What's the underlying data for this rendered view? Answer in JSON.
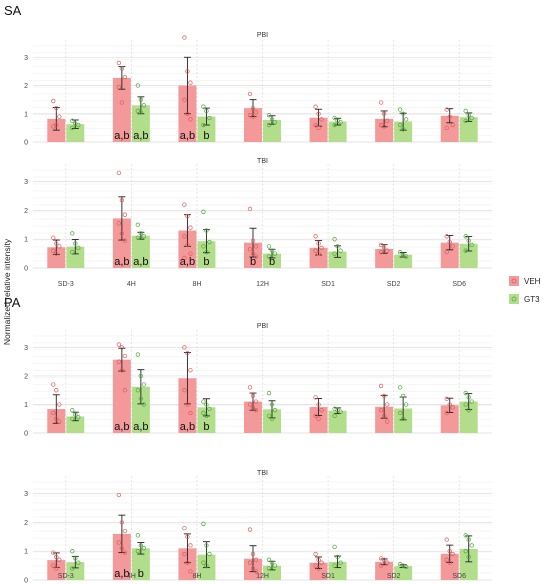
{
  "chart_data": {
    "type": "bar",
    "ylabel": "Normalized relative intensity",
    "categories": [
      "SD-3",
      "4H",
      "8H",
      "12H",
      "SD1",
      "SD2",
      "SD6"
    ],
    "yticks": [
      0,
      1,
      2,
      3
    ],
    "ylim": [
      0,
      3.4
    ],
    "grid": true,
    "legend": {
      "position": "right",
      "entries": [
        "VEH",
        "GT3"
      ]
    },
    "colors": {
      "VEH": "#f4999a",
      "GT3": "#b2de8b",
      "VEH_point": "#e05a5a",
      "GT3_point": "#4caa3c"
    },
    "sections": [
      {
        "label": "SA",
        "panels": [
          {
            "title": "PBI",
            "series": [
              {
                "name": "VEH",
                "values": [
                  0.82,
                  2.27,
                  2.0,
                  1.2,
                  0.86,
                  0.82,
                  0.93
                ],
                "err": [
                  0.4,
                  0.4,
                  1.0,
                  0.3,
                  0.3,
                  0.28,
                  0.25
                ]
              },
              {
                "name": "GT3",
                "values": [
                  0.63,
                  1.3,
                  0.9,
                  0.78,
                  0.72,
                  0.72,
                  0.88
                ],
                "err": [
                  0.15,
                  0.3,
                  0.3,
                  0.15,
                  0.12,
                  0.3,
                  0.15
                ]
              }
            ],
            "points": {
              "VEH": [
                [
                  1.45,
                  1.2,
                  0.9,
                  0.55,
                  0.6
                ],
                [
                  2.8,
                  2.6,
                  2.3,
                  1.95,
                  1.4
                ],
                [
                  3.7,
                  2.5,
                  2.1,
                  1.5,
                  1.0,
                  0.8
                ],
                [
                  1.7,
                  1.2,
                  1.05,
                  0.95,
                  0.9
                ],
                [
                  1.25,
                  1.0,
                  0.8,
                  0.6,
                  0.5
                ],
                [
                  1.4,
                  1.0,
                  0.75,
                  0.6,
                  0.55
                ],
                [
                  1.15,
                  0.9,
                  0.6,
                  0.5
                ]
              ],
              "GT3": [
                [
                  0.75,
                  0.65,
                  0.6,
                  0.5
                ],
                [
                  2.0,
                  1.5,
                  1.3,
                  1.1,
                  1.05
                ],
                [
                  1.25,
                  1.1,
                  0.85,
                  0.6
                ],
                [
                  0.95,
                  0.8,
                  0.7,
                  0.6
                ],
                [
                  0.85,
                  0.75,
                  0.7,
                  0.6
                ],
                [
                  1.15,
                  1.0,
                  0.8,
                  0.6,
                  0.45
                ],
                [
                  1.1,
                  0.95,
                  0.85,
                  0.75
                ]
              ]
            },
            "annotations": [
              {
                "category": "4H",
                "series": "VEH",
                "text": "a,b"
              },
              {
                "category": "4H",
                "series": "GT3",
                "text": "a,b"
              },
              {
                "category": "8H",
                "series": "VEH",
                "text": "a,b"
              },
              {
                "category": "8H",
                "series": "GT3",
                "text": "b"
              }
            ]
          },
          {
            "title": "TBI",
            "series": [
              {
                "name": "VEH",
                "values": [
                  0.72,
                  1.72,
                  1.3,
                  0.88,
                  0.7,
                  0.66,
                  0.88
                ],
                "err": [
                  0.25,
                  0.75,
                  0.55,
                  0.5,
                  0.25,
                  0.15,
                  0.25
                ]
              },
              {
                "name": "GT3",
                "values": [
                  0.74,
                  1.12,
                  0.93,
                  0.5,
                  0.57,
                  0.46,
                  0.84
                ],
                "err": [
                  0.25,
                  0.12,
                  0.4,
                  0.15,
                  0.2,
                  0.08,
                  0.25
                ]
              }
            ],
            "points": {
              "VEH": [
                [
                  1.05,
                  0.85,
                  0.75,
                  0.6,
                  0.5
                ],
                [
                  3.3,
                  2.35,
                  1.85,
                  1.55,
                  1.2,
                  0.95
                ],
                [
                  2.2,
                  1.8,
                  1.4,
                  1.1,
                  0.8,
                  0.5,
                  0.35
                ],
                [
                  2.05,
                  0.95,
                  0.75,
                  0.65,
                  0.5,
                  0.4
                ],
                [
                  1.1,
                  0.85,
                  0.7,
                  0.6,
                  0.5
                ],
                [
                  0.8,
                  0.7,
                  0.6,
                  0.55
                ],
                [
                  1.1,
                  0.9,
                  0.75,
                  0.55
                ]
              ],
              "GT3": [
                [
                  1.2,
                  0.85,
                  0.7,
                  0.55
                ],
                [
                  1.5,
                  1.2,
                  1.1,
                  1.05
                ],
                [
                  1.95,
                  1.3,
                  0.9,
                  0.75,
                  0.55
                ],
                [
                  0.75,
                  0.6,
                  0.5,
                  0.4
                ],
                [
                  1.0,
                  0.75,
                  0.6,
                  0.5
                ],
                [
                  0.55,
                  0.45,
                  0.4
                ],
                [
                  1.1,
                  0.95,
                  0.8,
                  0.6
                ]
              ]
            },
            "annotations": [
              {
                "category": "4H",
                "series": "VEH",
                "text": "a,b"
              },
              {
                "category": "4H",
                "series": "GT3",
                "text": "a,b"
              },
              {
                "category": "8H",
                "series": "VEH",
                "text": "a,b"
              },
              {
                "category": "8H",
                "series": "GT3",
                "text": "b"
              },
              {
                "category": "12H",
                "series": "VEH",
                "text": "b"
              },
              {
                "category": "12H",
                "series": "GT3",
                "text": "b"
              }
            ]
          }
        ]
      },
      {
        "label": "PA",
        "panels": [
          {
            "title": "PBI",
            "series": [
              {
                "name": "VEH",
                "values": [
                  0.84,
                  2.57,
                  1.92,
                  1.1,
                  0.91,
                  0.92,
                  0.97
                ],
                "err": [
                  0.5,
                  0.4,
                  0.9,
                  0.3,
                  0.3,
                  0.4,
                  0.25
                ]
              },
              {
                "name": "GT3",
                "values": [
                  0.58,
                  1.62,
                  0.9,
                  0.83,
                  0.78,
                  0.86,
                  1.1
                ],
                "err": [
                  0.15,
                  0.6,
                  0.3,
                  0.3,
                  0.1,
                  0.4,
                  0.28
                ]
              }
            ],
            "points": {
              "VEH": [
                [
                  1.7,
                  1.5,
                  1.0,
                  0.7,
                  0.5,
                  0.4
                ],
                [
                  3.1,
                  3.0,
                  2.7,
                  2.5,
                  2.2,
                  1.5
                ],
                [
                  3.0,
                  2.8,
                  2.2,
                  1.5,
                  1.0,
                  0.7
                ],
                [
                  1.6,
                  1.3,
                  1.1,
                  1.0,
                  0.9,
                  0.8
                ],
                [
                  1.25,
                  1.0,
                  0.8,
                  0.6,
                  0.5
                ],
                [
                  1.65,
                  1.3,
                  1.0,
                  0.8,
                  0.6,
                  0.4
                ],
                [
                  1.2,
                  1.0,
                  0.9,
                  0.7
                ]
              ],
              "GT3": [
                [
                  0.8,
                  0.65,
                  0.55,
                  0.5
                ],
                [
                  2.75,
                  2.0,
                  1.7,
                  1.5,
                  1.2,
                  1.0
                ],
                [
                  1.1,
                  1.0,
                  0.85,
                  0.7,
                  0.6
                ],
                [
                  1.4,
                  1.0,
                  0.8,
                  0.6,
                  0.5
                ],
                [
                  0.85,
                  0.8,
                  0.75,
                  0.6
                ],
                [
                  1.6,
                  1.3,
                  1.0,
                  0.7,
                  0.5
                ],
                [
                  1.4,
                  1.25,
                  1.1,
                  1.0,
                  0.8
                ]
              ]
            },
            "annotations": [
              {
                "category": "4H",
                "series": "VEH",
                "text": "a,b"
              },
              {
                "category": "4H",
                "series": "GT3",
                "text": "a,b"
              },
              {
                "category": "8H",
                "series": "VEH",
                "text": "a,b"
              },
              {
                "category": "8H",
                "series": "GT3",
                "text": "b"
              }
            ]
          },
          {
            "title": "TBI",
            "series": [
              {
                "name": "VEH",
                "values": [
                  0.69,
                  1.6,
                  1.1,
                  0.74,
                  0.6,
                  0.63,
                  0.91
                ],
                "err": [
                  0.25,
                  0.65,
                  0.5,
                  0.45,
                  0.2,
                  0.1,
                  0.3
                ]
              },
              {
                "name": "GT3",
                "values": [
                  0.62,
                  1.1,
                  0.88,
                  0.5,
                  0.63,
                  0.48,
                  1.08
                ],
                "err": [
                  0.2,
                  0.2,
                  0.45,
                  0.15,
                  0.2,
                  0.05,
                  0.45
                ]
              }
            ],
            "points": {
              "VEH": [
                [
                  0.95,
                  0.8,
                  0.7,
                  0.5,
                  0.4
                ],
                [
                  2.95,
                  2.0,
                  1.7,
                  1.3,
                  1.1,
                  0.95
                ],
                [
                  1.8,
                  1.5,
                  1.2,
                  0.9,
                  0.6,
                  0.3
                ],
                [
                  1.75,
                  0.9,
                  0.7,
                  0.6,
                  0.4,
                  0.3
                ],
                [
                  0.9,
                  0.7,
                  0.6,
                  0.5,
                  0.4
                ],
                [
                  0.75,
                  0.7,
                  0.6,
                  0.5
                ],
                [
                  1.4,
                  1.0,
                  0.9,
                  0.7,
                  0.6
                ]
              ],
              "GT3": [
                [
                  1.0,
                  0.75,
                  0.6,
                  0.4
                ],
                [
                  1.55,
                  1.2,
                  1.1,
                  1.0
                ],
                [
                  1.95,
                  1.2,
                  0.9,
                  0.6,
                  0.5
                ],
                [
                  0.7,
                  0.6,
                  0.5,
                  0.4
                ],
                [
                  1.15,
                  0.8,
                  0.6,
                  0.5
                ],
                [
                  0.55,
                  0.5,
                  0.45
                ],
                [
                  1.55,
                  1.4,
                  1.2,
                  1.0,
                  0.8
                ]
              ]
            },
            "annotations": [
              {
                "category": "4H",
                "series": "VEH",
                "text": "a,b"
              },
              {
                "category": "4H",
                "series": "GT3",
                "text": "b"
              }
            ]
          }
        ]
      }
    ]
  }
}
